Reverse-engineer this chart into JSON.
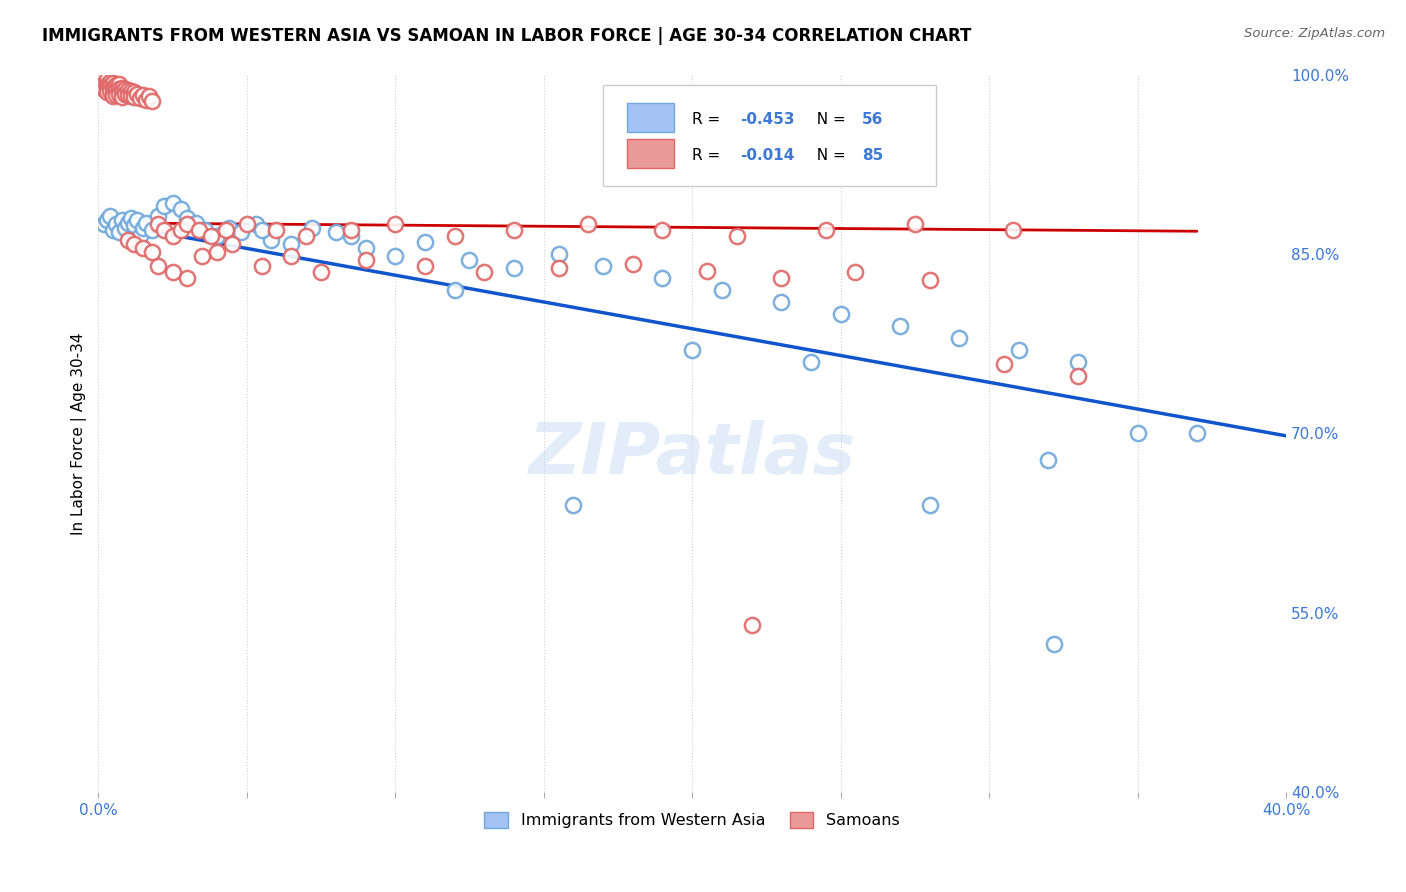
{
  "title": "IMMIGRANTS FROM WESTERN ASIA VS SAMOAN IN LABOR FORCE | AGE 30-34 CORRELATION CHART",
  "source": "Source: ZipAtlas.com",
  "ylabel": "In Labor Force | Age 30-34",
  "xlim": [
    0.0,
    0.4
  ],
  "ylim": [
    0.4,
    1.0
  ],
  "blue_color": "#a4c2f4",
  "pink_color": "#ea9999",
  "blue_edge_color": "#6fa8dc",
  "pink_edge_color": "#e06666",
  "blue_line_color": "#1155cc",
  "pink_line_color": "#cc0000",
  "R_blue": -0.453,
  "N_blue": 56,
  "R_pink": -0.014,
  "N_pink": 85,
  "legend_label_blue": "Immigrants from Western Asia",
  "legend_label_pink": "Samoans",
  "watermark": "ZIPatlas",
  "blue_scatter_x": [
    0.002,
    0.003,
    0.004,
    0.005,
    0.006,
    0.007,
    0.008,
    0.009,
    0.01,
    0.011,
    0.012,
    0.013,
    0.014,
    0.015,
    0.016,
    0.018,
    0.02,
    0.022,
    0.025,
    0.028,
    0.03,
    0.033,
    0.036,
    0.04,
    0.044,
    0.048,
    0.053,
    0.058,
    0.065,
    0.072,
    0.08,
    0.09,
    0.1,
    0.11,
    0.125,
    0.14,
    0.155,
    0.17,
    0.19,
    0.21,
    0.23,
    0.25,
    0.27,
    0.29,
    0.31,
    0.33,
    0.35,
    0.37,
    0.32,
    0.28,
    0.24,
    0.2,
    0.16,
    0.12,
    0.085,
    0.055
  ],
  "blue_scatter_y": [
    0.875,
    0.878,
    0.882,
    0.87,
    0.875,
    0.868,
    0.878,
    0.872,
    0.876,
    0.88,
    0.874,
    0.878,
    0.865,
    0.872,
    0.876,
    0.87,
    0.882,
    0.89,
    0.893,
    0.888,
    0.88,
    0.876,
    0.87,
    0.865,
    0.872,
    0.868,
    0.875,
    0.862,
    0.858,
    0.872,
    0.868,
    0.855,
    0.848,
    0.86,
    0.845,
    0.838,
    0.85,
    0.84,
    0.83,
    0.82,
    0.81,
    0.8,
    0.79,
    0.78,
    0.77,
    0.76,
    0.7,
    0.7,
    0.678,
    0.64,
    0.76,
    0.77,
    0.64,
    0.82,
    0.865,
    0.87
  ],
  "pink_scatter_x": [
    0.001,
    0.001,
    0.001,
    0.002,
    0.002,
    0.002,
    0.003,
    0.003,
    0.003,
    0.003,
    0.004,
    0.004,
    0.004,
    0.005,
    0.005,
    0.005,
    0.005,
    0.006,
    0.006,
    0.006,
    0.007,
    0.007,
    0.007,
    0.008,
    0.008,
    0.008,
    0.009,
    0.009,
    0.01,
    0.01,
    0.011,
    0.011,
    0.012,
    0.012,
    0.013,
    0.014,
    0.015,
    0.016,
    0.017,
    0.018,
    0.02,
    0.022,
    0.025,
    0.028,
    0.03,
    0.034,
    0.038,
    0.043,
    0.05,
    0.06,
    0.07,
    0.085,
    0.1,
    0.12,
    0.14,
    0.165,
    0.19,
    0.215,
    0.245,
    0.275,
    0.308,
    0.035,
    0.04,
    0.045,
    0.055,
    0.065,
    0.075,
    0.09,
    0.11,
    0.13,
    0.155,
    0.18,
    0.205,
    0.23,
    0.255,
    0.28,
    0.305,
    0.33,
    0.02,
    0.025,
    0.03,
    0.01,
    0.012,
    0.015,
    0.018
  ],
  "pink_scatter_y": [
    0.998,
    0.995,
    0.99,
    0.998,
    0.992,
    0.988,
    0.996,
    0.991,
    0.988,
    0.985,
    0.994,
    0.99,
    0.986,
    0.993,
    0.989,
    0.985,
    0.982,
    0.991,
    0.987,
    0.983,
    0.992,
    0.988,
    0.984,
    0.989,
    0.985,
    0.981,
    0.988,
    0.984,
    0.987,
    0.983,
    0.986,
    0.982,
    0.985,
    0.981,
    0.984,
    0.98,
    0.983,
    0.979,
    0.982,
    0.978,
    0.875,
    0.87,
    0.865,
    0.87,
    0.875,
    0.87,
    0.865,
    0.87,
    0.875,
    0.87,
    0.865,
    0.87,
    0.875,
    0.865,
    0.87,
    0.875,
    0.87,
    0.865,
    0.87,
    0.875,
    0.87,
    0.848,
    0.852,
    0.858,
    0.84,
    0.848,
    0.835,
    0.845,
    0.84,
    0.835,
    0.838,
    0.842,
    0.836,
    0.83,
    0.835,
    0.828,
    0.758,
    0.748,
    0.84,
    0.835,
    0.83,
    0.862,
    0.858,
    0.855,
    0.852
  ],
  "blue_line_x": [
    0.0,
    0.4
  ],
  "blue_line_y": [
    0.877,
    0.698
  ],
  "pink_line_x": [
    0.0,
    0.37
  ],
  "pink_line_y": [
    0.876,
    0.869
  ]
}
